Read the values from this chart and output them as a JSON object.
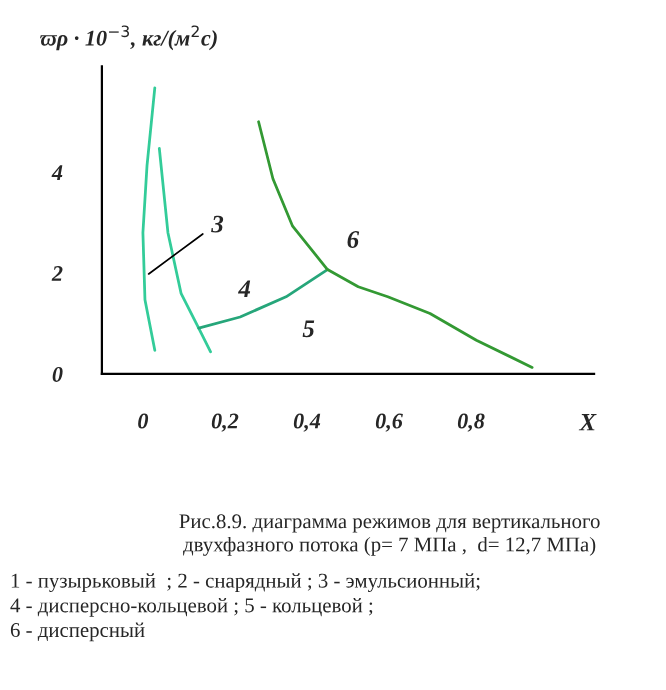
{
  "chart_data": {
    "type": "line",
    "ylabel": "ϖρ · 10$^{−3}$, кг/(м$^{2}$с)",
    "xlabel": "X",
    "xlim": [
      -0.1,
      1.1
    ],
    "ylim": [
      0,
      6.1
    ],
    "xticks": [
      0,
      {
        "value": 0.2,
        "label": "0,2"
      },
      {
        "value": 0.4,
        "label": "0,4"
      },
      {
        "value": 0.6,
        "label": "0,6"
      },
      {
        "value": 0.8,
        "label": "0,8"
      }
    ],
    "yticks": [
      0,
      2,
      4
    ],
    "grid": false,
    "legend": false,
    "marker": "none",
    "line_style": "solid",
    "series": [
      {
        "color": "#33cc99",
        "x": [
          0.029,
          0.01,
          0.0,
          0.005,
          0.029
        ],
        "values": [
          5.67,
          4.13,
          2.8,
          1.47,
          0.47
        ]
      },
      {
        "color": "#33cc99",
        "x": [
          0.04,
          0.061,
          0.093,
          0.136,
          0.165
        ],
        "values": [
          4.47,
          2.8,
          1.6,
          0.91,
          0.44
        ]
      },
      {
        "color": "#26a67a",
        "x": [
          0.136,
          0.237,
          0.349,
          0.45
        ],
        "values": [
          0.91,
          1.13,
          1.53,
          2.07
        ]
      },
      {
        "color": "#339933",
        "x": [
          0.282,
          0.317,
          0.365,
          0.45,
          0.525,
          0.597,
          0.7,
          0.813,
          0.949
        ],
        "values": [
          5.0,
          3.87,
          2.93,
          2.07,
          1.73,
          1.53,
          1.2,
          0.67,
          0.13
        ]
      }
    ],
    "annotations": [
      "3",
      "4",
      "5",
      "6",
      "Рис.8.9. диаграмма режимов для вертикального\nдвухфазного потока (p= 7 МПа ,  d= 12,7 МПа)",
      "1 - пузырьковый  ; 2 - снарядный ; 3 - эмульсионный;\n4 - дисперсно-кольцевой ; 5 - кольцевой ;\n6 - дисперсный"
    ]
  }
}
